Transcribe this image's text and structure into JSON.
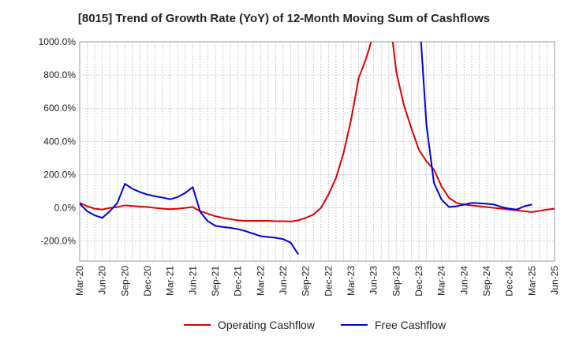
{
  "title": "[8015]  Trend of Growth Rate (YoY) of 12-Month Moving Sum of Cashflows",
  "chart_data": {
    "type": "line",
    "title": "[8015]  Trend of Growth Rate (YoY) of 12-Month Moving Sum of Cashflows",
    "xlabel": "",
    "ylabel": "",
    "ylim": [
      -320,
      1000
    ],
    "yticks": [
      -200,
      0,
      200,
      400,
      600,
      800,
      1000
    ],
    "ytick_labels": [
      "-200.0%",
      "0.0%",
      "200.0%",
      "400.0%",
      "600.0%",
      "800.0%",
      "1000.0%"
    ],
    "x_categories": [
      "Mar-20",
      "Apr-20",
      "May-20",
      "Jun-20",
      "Jul-20",
      "Aug-20",
      "Sep-20",
      "Oct-20",
      "Nov-20",
      "Dec-20",
      "Jan-21",
      "Feb-21",
      "Mar-21",
      "Apr-21",
      "May-21",
      "Jun-21",
      "Jul-21",
      "Aug-21",
      "Sep-21",
      "Oct-21",
      "Nov-21",
      "Dec-21",
      "Jan-22",
      "Feb-22",
      "Mar-22",
      "Apr-22",
      "May-22",
      "Jun-22",
      "Jul-22",
      "Aug-22",
      "Sep-22",
      "Oct-22",
      "Nov-22",
      "Dec-22",
      "Jan-23",
      "Feb-23",
      "Mar-23",
      "Apr-23",
      "May-23",
      "Jun-23",
      "Jul-23",
      "Aug-23",
      "Sep-23",
      "Oct-23",
      "Nov-23",
      "Dec-23",
      "Jan-24",
      "Feb-24",
      "Mar-24",
      "Apr-24",
      "May-24",
      "Jun-24",
      "Jul-24",
      "Aug-24",
      "Sep-24",
      "Oct-24",
      "Nov-24",
      "Dec-24",
      "Jan-25",
      "Feb-25",
      "Mar-25",
      "Apr-25",
      "May-25",
      "Jun-25"
    ],
    "xtick_labels": [
      "Mar-20",
      "Jun-20",
      "Sep-20",
      "Dec-20",
      "Mar-21",
      "Jun-21",
      "Sep-21",
      "Dec-21",
      "Mar-22",
      "Jun-22",
      "Sep-22",
      "Dec-22",
      "Mar-23",
      "Jun-23",
      "Sep-23",
      "Dec-23",
      "Mar-24",
      "Jun-24",
      "Sep-24",
      "Dec-24",
      "Mar-25",
      "Jun-25"
    ],
    "grid": true,
    "legend_position": "bottom",
    "series": [
      {
        "name": "Operating Cashflow",
        "color": "#e00000",
        "values": [
          30,
          10,
          -5,
          -10,
          0,
          5,
          15,
          12,
          8,
          5,
          0,
          -5,
          -8,
          -5,
          0,
          5,
          -20,
          -35,
          -50,
          -60,
          -68,
          -75,
          -78,
          -78,
          -78,
          -78,
          -80,
          -80,
          -82,
          -75,
          -60,
          -40,
          0,
          80,
          180,
          330,
          530,
          780,
          900,
          1050,
          1200,
          1200,
          820,
          620,
          480,
          350,
          280,
          230,
          130,
          60,
          30,
          20,
          15,
          10,
          5,
          0,
          -5,
          -10,
          -15,
          -20,
          -25,
          -18,
          -10,
          -5
        ]
      },
      {
        "name": "Free Cashflow",
        "color": "#0000dd",
        "values": [
          25,
          -20,
          -45,
          -60,
          -20,
          30,
          145,
          115,
          95,
          80,
          70,
          62,
          52,
          65,
          90,
          125,
          -25,
          -80,
          -108,
          -115,
          -120,
          -128,
          -140,
          -155,
          -170,
          -175,
          -180,
          -188,
          -210,
          -280,
          null,
          null,
          null,
          null,
          null,
          null,
          null,
          null,
          null,
          null,
          null,
          null,
          null,
          null,
          null,
          1200,
          500,
          150,
          50,
          5,
          10,
          20,
          30,
          28,
          25,
          20,
          5,
          -5,
          -10,
          10,
          20,
          null,
          null,
          null
        ]
      }
    ]
  }
}
